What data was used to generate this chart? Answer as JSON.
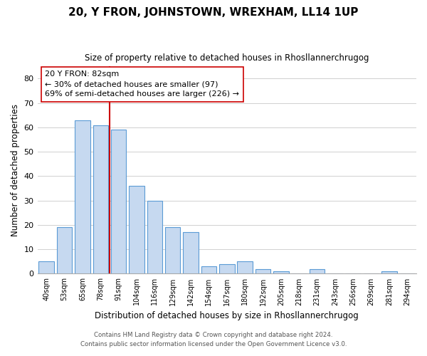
{
  "title": "20, Y FRON, JOHNSTOWN, WREXHAM, LL14 1UP",
  "subtitle": "Size of property relative to detached houses in Rhosllannerchrugog",
  "xlabel": "Distribution of detached houses by size in Rhosllannerchrugog",
  "ylabel": "Number of detached properties",
  "categories": [
    "40sqm",
    "53sqm",
    "65sqm",
    "78sqm",
    "91sqm",
    "104sqm",
    "116sqm",
    "129sqm",
    "142sqm",
    "154sqm",
    "167sqm",
    "180sqm",
    "192sqm",
    "205sqm",
    "218sqm",
    "231sqm",
    "243sqm",
    "256sqm",
    "269sqm",
    "281sqm",
    "294sqm"
  ],
  "values": [
    5,
    19,
    63,
    61,
    59,
    36,
    30,
    19,
    17,
    3,
    4,
    5,
    2,
    1,
    0,
    2,
    0,
    0,
    0,
    1,
    0
  ],
  "bar_color": "#c6d9f0",
  "bar_edge_color": "#5b9bd5",
  "marker_bin_index": 3,
  "marker_color": "#cc0000",
  "annotation_title": "20 Y FRON: 82sqm",
  "annotation_line1": "← 30% of detached houses are smaller (97)",
  "annotation_line2": "69% of semi-detached houses are larger (226) →",
  "annotation_box_color": "#ffffff",
  "annotation_box_edge": "#cc0000",
  "ylim": [
    0,
    85
  ],
  "yticks": [
    0,
    10,
    20,
    30,
    40,
    50,
    60,
    70,
    80
  ],
  "footer1": "Contains HM Land Registry data © Crown copyright and database right 2024.",
  "footer2": "Contains public sector information licensed under the Open Government Licence v3.0.",
  "background_color": "#ffffff",
  "grid_color": "#d0d0d0"
}
